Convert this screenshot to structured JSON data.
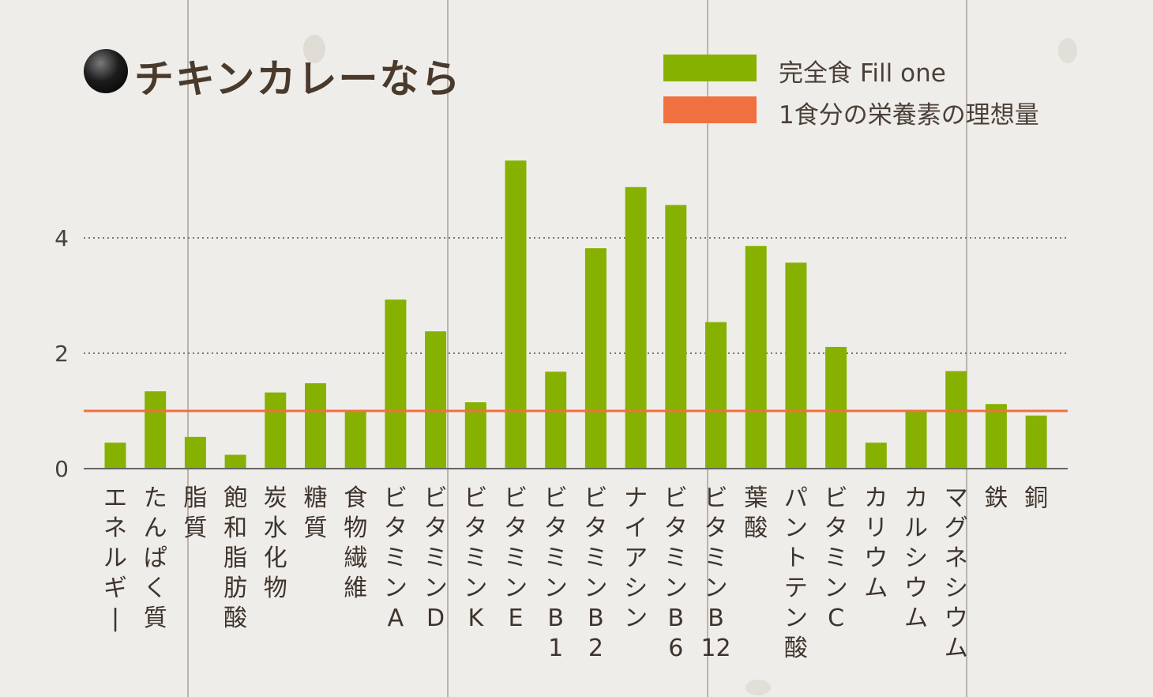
{
  "title": "●チキンカレーなら",
  "legend": {
    "items": [
      {
        "label": "完全食 Fill one",
        "color": "#86b100"
      },
      {
        "label": "1食分の栄養素の理想量",
        "color": "#f0703f"
      }
    ]
  },
  "chart_data": {
    "type": "bar",
    "title": "チキンカレーなら",
    "xlabel": "",
    "ylabel": "",
    "ylim": [
      0,
      5.45
    ],
    "yticks": [
      "0",
      "2",
      "4"
    ],
    "grid": "dotted horizontal at 2 and 4",
    "legend_placement": "top-right",
    "reference_line": {
      "name": "1食分の栄養素の理想量",
      "value": 1.0,
      "color": "#f0703f"
    },
    "categories": [
      "エネルギー",
      "たんぱく質",
      "脂質",
      "飽和脂肪酸",
      "炭水化物",
      "糖質",
      "食物繊維",
      "ビタミンA",
      "ビタミンD",
      "ビタミンK",
      "ビタミンE",
      "ビタミンB1",
      "ビタミンB2",
      "ナイアシン",
      "ビタミンB6",
      "ビタミンB12",
      "葉酸",
      "パントテン酸",
      "ビタミンC",
      "カリウム",
      "カルシウム",
      "マグネシウム",
      "鉄",
      "銅"
    ],
    "series": [
      {
        "name": "完全食 Fill one",
        "color": "#86b100",
        "values": [
          0.45,
          1.34,
          0.55,
          0.24,
          1.32,
          1.48,
          1.0,
          2.93,
          2.38,
          1.15,
          5.34,
          1.68,
          3.82,
          4.88,
          4.57,
          2.54,
          3.86,
          3.57,
          2.11,
          0.45,
          1.02,
          1.69,
          1.12,
          0.92
        ]
      }
    ]
  }
}
